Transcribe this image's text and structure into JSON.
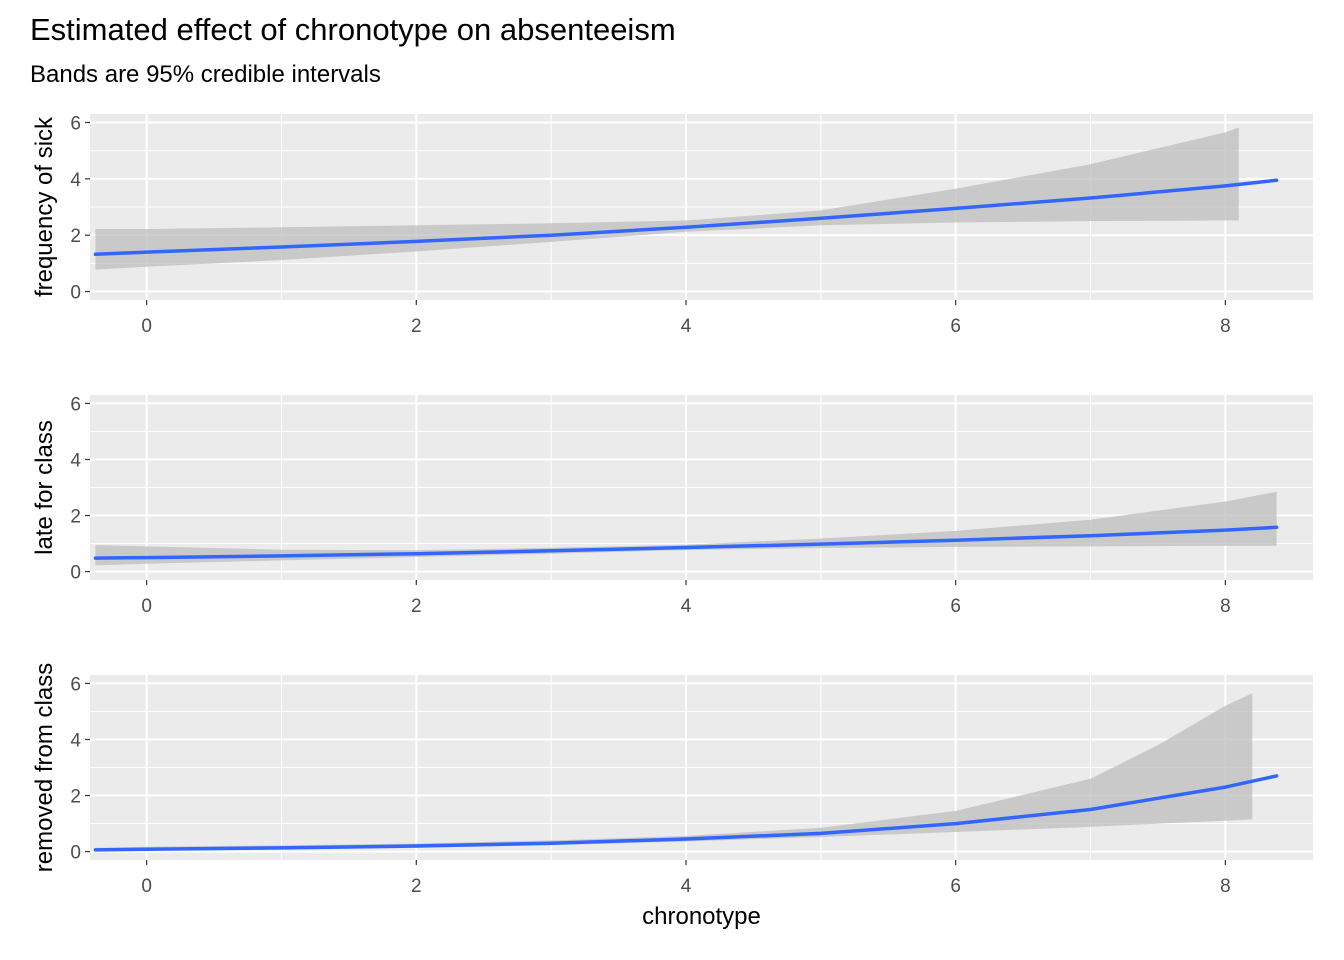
{
  "title": "Estimated effect of chronotype on absenteeism",
  "subtitle": "Bands are 95% credible intervals",
  "colors": {
    "panel_bg": "#EBEBEB",
    "grid": "#FFFFFF",
    "line": "#3366FF",
    "band": "#BEBEBE",
    "tick_text": "#4D4D4D"
  },
  "chart_data": [
    {
      "type": "line",
      "panel": "frequency of sick",
      "ylabel": "frequency of sick",
      "xlabel": "",
      "xlim": [
        -0.42,
        8.65
      ],
      "ylim": [
        -0.3,
        6.3
      ],
      "x_ticks": [
        0,
        2,
        4,
        6,
        8
      ],
      "y_ticks": [
        0,
        2,
        4,
        6
      ],
      "grid": true,
      "series": [
        {
          "x": [
            -0.38,
            0,
            1,
            2,
            3,
            4,
            5,
            6,
            7,
            8,
            8.38
          ],
          "y": [
            1.32,
            1.4,
            1.58,
            1.78,
            2.0,
            2.28,
            2.6,
            2.95,
            3.32,
            3.75,
            3.95
          ]
        }
      ],
      "band": {
        "x": [
          -0.38,
          0,
          1,
          2,
          3,
          4,
          5,
          6,
          7,
          8,
          8.1
        ],
        "lower": [
          0.78,
          0.88,
          1.12,
          1.42,
          1.76,
          2.12,
          2.35,
          2.45,
          2.5,
          2.52,
          2.52
        ],
        "upper": [
          2.22,
          2.22,
          2.28,
          2.35,
          2.42,
          2.52,
          2.88,
          3.65,
          4.52,
          5.65,
          5.82
        ]
      }
    },
    {
      "type": "line",
      "panel": "late for class",
      "ylabel": "late for class",
      "xlabel": "",
      "xlim": [
        -0.42,
        8.65
      ],
      "ylim": [
        -0.3,
        6.3
      ],
      "x_ticks": [
        0,
        2,
        4,
        6,
        8
      ],
      "y_ticks": [
        0,
        2,
        4,
        6
      ],
      "grid": true,
      "series": [
        {
          "x": [
            -0.38,
            0,
            1,
            2,
            3,
            4,
            5,
            6,
            7,
            8,
            8.38
          ],
          "y": [
            0.48,
            0.5,
            0.56,
            0.64,
            0.74,
            0.86,
            0.98,
            1.12,
            1.28,
            1.48,
            1.58
          ]
        }
      ],
      "band": {
        "x": [
          -0.38,
          0,
          1,
          2,
          3,
          4,
          5,
          6,
          7,
          8,
          8.38
        ],
        "lower": [
          0.22,
          0.28,
          0.4,
          0.52,
          0.64,
          0.77,
          0.84,
          0.88,
          0.9,
          0.92,
          0.92
        ],
        "upper": [
          0.95,
          0.9,
          0.78,
          0.76,
          0.85,
          0.96,
          1.18,
          1.45,
          1.85,
          2.5,
          2.85
        ]
      }
    },
    {
      "type": "line",
      "panel": "removed from class",
      "ylabel": "removed from class",
      "xlabel": "chronotype",
      "xlim": [
        -0.42,
        8.65
      ],
      "ylim": [
        -0.3,
        6.3
      ],
      "x_ticks": [
        0,
        2,
        4,
        6,
        8
      ],
      "y_ticks": [
        0,
        2,
        4,
        6
      ],
      "grid": true,
      "series": [
        {
          "x": [
            -0.38,
            0,
            1,
            2,
            3,
            4,
            5,
            6,
            7,
            8,
            8.38
          ],
          "y": [
            0.06,
            0.08,
            0.13,
            0.2,
            0.3,
            0.45,
            0.65,
            1.0,
            1.5,
            2.3,
            2.7
          ]
        }
      ],
      "band": {
        "x": [
          -0.38,
          0,
          1,
          2,
          3,
          4,
          5,
          6,
          7,
          7.5,
          8,
          8.2
        ],
        "lower": [
          0.02,
          0.03,
          0.07,
          0.13,
          0.23,
          0.36,
          0.52,
          0.7,
          0.88,
          1.0,
          1.1,
          1.15
        ],
        "upper": [
          0.14,
          0.17,
          0.22,
          0.29,
          0.4,
          0.56,
          0.85,
          1.45,
          2.6,
          3.8,
          5.2,
          5.65
        ]
      }
    }
  ]
}
